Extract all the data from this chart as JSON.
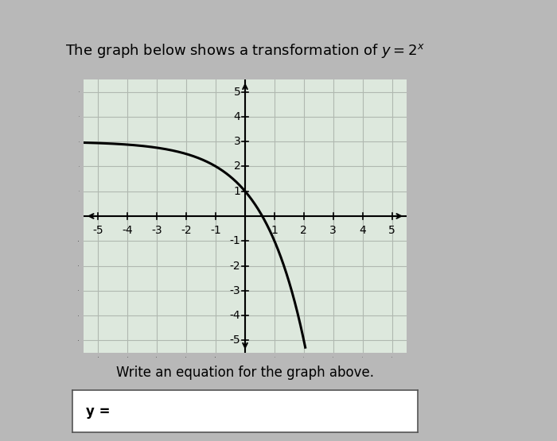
{
  "title": "The graph below shows a transformation of $y = 2^x$",
  "subtitle": "Write an equation for the graph above.",
  "answer_label": "y =",
  "xlim": [
    -5.5,
    5.5
  ],
  "ylim": [
    -5.5,
    5.5
  ],
  "xticks": [
    -5,
    -4,
    -3,
    -2,
    -1,
    1,
    2,
    3,
    4,
    5
  ],
  "yticks": [
    -5,
    -4,
    -3,
    -2,
    -1,
    1,
    2,
    3,
    4,
    5
  ],
  "curve_color": "#000000",
  "curve_linewidth": 2.2,
  "grid_color": "#b0b8b0",
  "grid_linewidth": 0.8,
  "axis_color": "#000000",
  "axis_linewidth": 1.5,
  "bg_color": "#dde8dd",
  "outer_bg": "#b8b8b8",
  "title_fontsize": 13,
  "tick_fontsize": 10,
  "subtitle_fontsize": 12
}
